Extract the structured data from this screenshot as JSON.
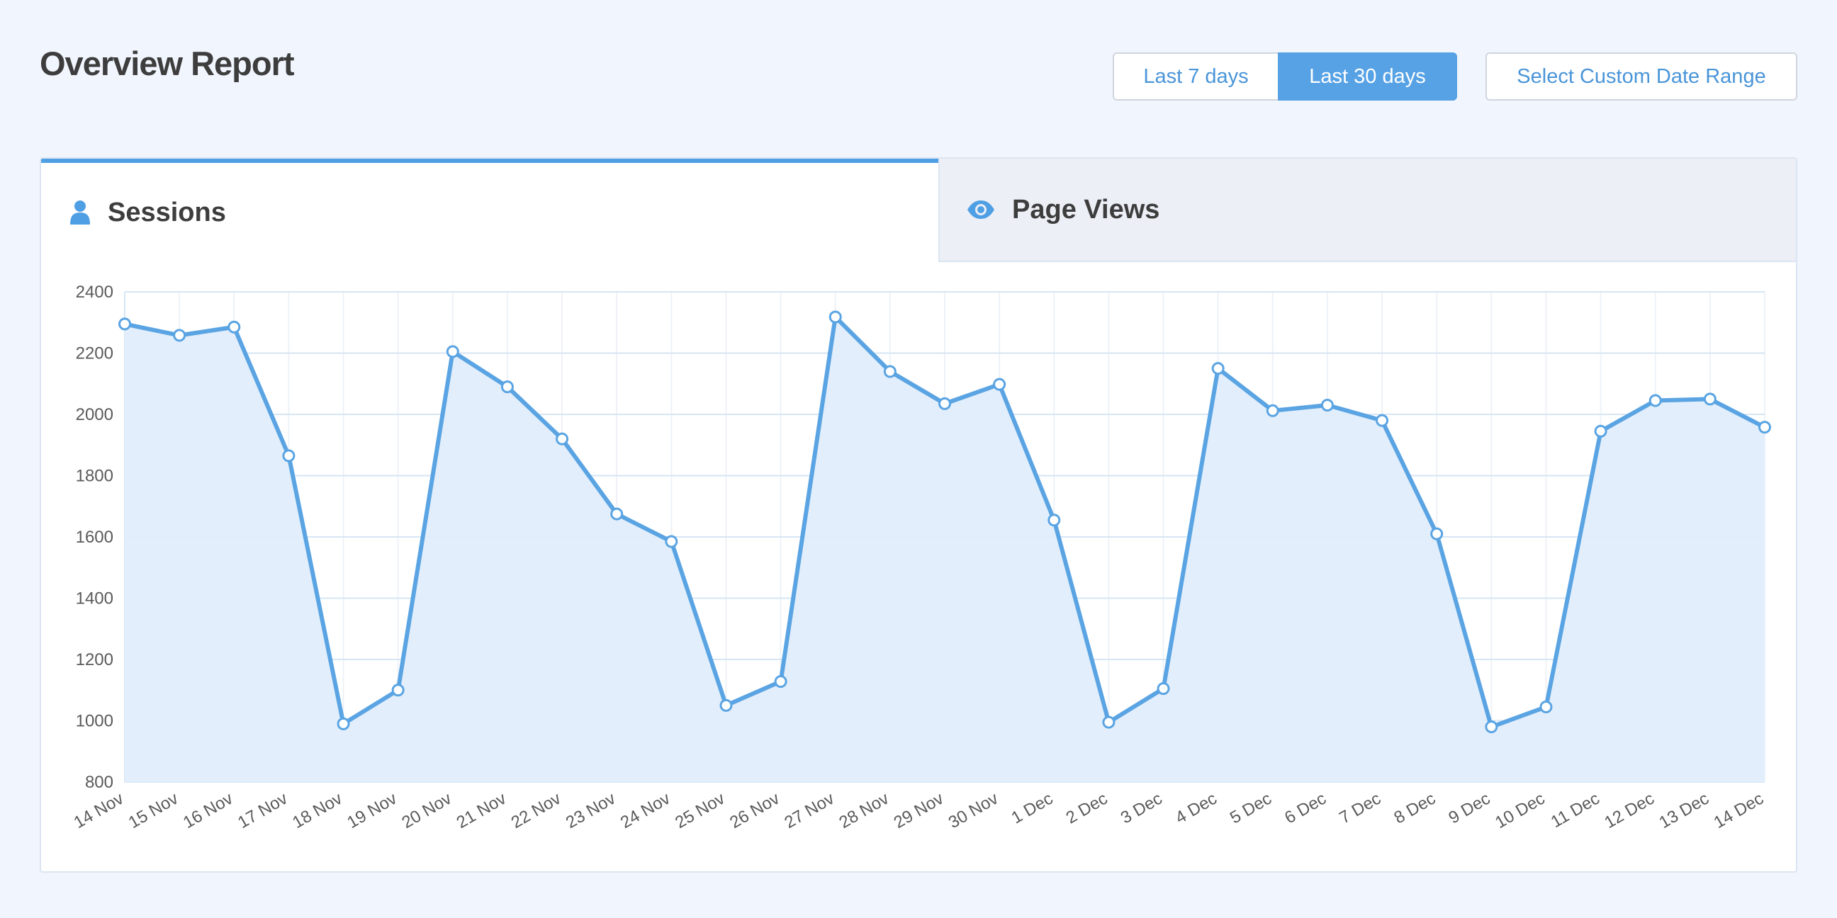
{
  "header": {
    "title": "Overview Report",
    "range_7": "Last 7 days",
    "range_30": "Last 30 days",
    "custom_range": "Select Custom Date Range"
  },
  "tabs": {
    "sessions": "Sessions",
    "pageviews": "Page Views"
  },
  "icons": {
    "sessions": "user-icon",
    "pageviews": "eye-icon"
  },
  "colors": {
    "accent": "#56a2e5",
    "line": "#5aa4e3",
    "area": "#e0edfb"
  },
  "chart_data": {
    "type": "area",
    "title": "",
    "xlabel": "",
    "ylabel": "",
    "ylim": [
      800,
      2400
    ],
    "yticks": [
      800,
      1000,
      1200,
      1400,
      1600,
      1800,
      2000,
      2200,
      2400
    ],
    "grid": true,
    "categories": [
      "14 Nov",
      "15 Nov",
      "16 Nov",
      "17 Nov",
      "18 Nov",
      "19 Nov",
      "20 Nov",
      "21 Nov",
      "22 Nov",
      "23 Nov",
      "24 Nov",
      "25 Nov",
      "26 Nov",
      "27 Nov",
      "28 Nov",
      "29 Nov",
      "30 Nov",
      "1 Dec",
      "2 Dec",
      "3 Dec",
      "4 Dec",
      "5 Dec",
      "6 Dec",
      "7 Dec",
      "8 Dec",
      "9 Dec",
      "10 Dec",
      "11 Dec",
      "12 Dec",
      "13 Dec",
      "14 Dec"
    ],
    "series": [
      {
        "values": [
          2295,
          2258,
          2285,
          1865,
          990,
          1100,
          2205,
          2090,
          1920,
          1675,
          1585,
          1050,
          1128,
          2318,
          2140,
          2035,
          2098,
          1655,
          995,
          1105,
          2150,
          2012,
          2030,
          1980,
          1610,
          980,
          1045,
          1945,
          2045,
          2050,
          1958
        ]
      }
    ]
  }
}
